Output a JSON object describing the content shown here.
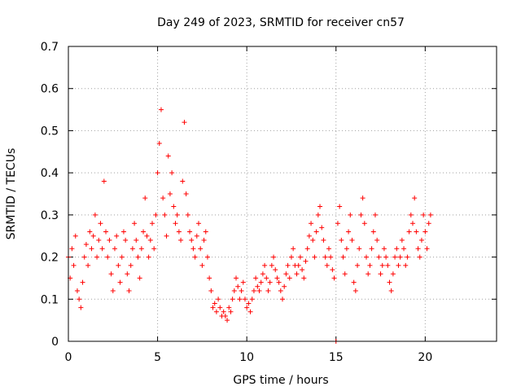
{
  "chart_data": {
    "type": "scatter",
    "title": "Day 249 of 2023, SRMTID for receiver cn57",
    "xlabel": "GPS time / hours",
    "ylabel": "SRMTID / TECUs",
    "xlim": [
      0,
      24
    ],
    "ylim": [
      0,
      0.7
    ],
    "xticks": [
      0,
      5,
      10,
      15,
      20
    ],
    "xtick_labels": [
      "0",
      "5",
      "10",
      "15",
      "20"
    ],
    "yticks": [
      0,
      0.1,
      0.2,
      0.3,
      0.4,
      0.5,
      0.6,
      0.7
    ],
    "ytick_labels": [
      "0",
      "0.1",
      "0.2",
      "0.3",
      "0.4",
      "0.5",
      "0.6",
      "0.7"
    ],
    "grid": true,
    "marker": "+",
    "series": [
      {
        "name": "SRMTID",
        "color": "#ff0000",
        "x": [
          0.0,
          0.1,
          0.2,
          0.3,
          0.4,
          0.5,
          0.6,
          0.7,
          0.8,
          0.9,
          1.0,
          1.1,
          1.2,
          1.3,
          1.4,
          1.5,
          1.6,
          1.7,
          1.8,
          1.9,
          2.0,
          2.1,
          2.2,
          2.3,
          2.4,
          2.5,
          2.6,
          2.7,
          2.8,
          2.9,
          3.0,
          3.1,
          3.2,
          3.3,
          3.4,
          3.5,
          3.6,
          3.7,
          3.8,
          3.9,
          4.0,
          4.1,
          4.2,
          4.3,
          4.4,
          4.5,
          4.6,
          4.7,
          4.8,
          4.9,
          5.0,
          5.1,
          5.2,
          5.3,
          5.4,
          5.5,
          5.6,
          5.7,
          5.8,
          5.9,
          6.0,
          6.1,
          6.2,
          6.3,
          6.4,
          6.5,
          6.6,
          6.7,
          6.8,
          6.9,
          7.0,
          7.1,
          7.2,
          7.3,
          7.4,
          7.5,
          7.6,
          7.7,
          7.8,
          7.9,
          8.0,
          8.1,
          8.2,
          8.3,
          8.4,
          8.5,
          8.6,
          8.7,
          8.8,
          8.9,
          9.0,
          9.1,
          9.2,
          9.3,
          9.4,
          9.5,
          9.6,
          9.7,
          9.8,
          9.9,
          10.0,
          10.1,
          10.2,
          10.3,
          10.4,
          10.5,
          10.6,
          10.7,
          10.8,
          10.9,
          11.0,
          11.1,
          11.2,
          11.3,
          11.4,
          11.5,
          11.6,
          11.7,
          11.8,
          11.9,
          12.0,
          12.1,
          12.2,
          12.3,
          12.4,
          12.5,
          12.6,
          12.7,
          12.8,
          12.9,
          13.0,
          13.1,
          13.2,
          13.3,
          13.4,
          13.5,
          13.6,
          13.7,
          13.8,
          13.9,
          14.0,
          14.1,
          14.2,
          14.3,
          14.4,
          14.5,
          14.6,
          14.7,
          14.8,
          14.9,
          15.0,
          15.1,
          15.2,
          15.3,
          15.4,
          15.5,
          15.6,
          15.7,
          15.8,
          15.9,
          16.0,
          16.1,
          16.2,
          16.3,
          16.4,
          16.5,
          16.6,
          16.7,
          16.8,
          16.9,
          17.0,
          17.1,
          17.2,
          17.3,
          17.4,
          17.5,
          17.6,
          17.7,
          17.8,
          17.9,
          18.0,
          18.1,
          18.2,
          18.3,
          18.4,
          18.5,
          18.6,
          18.7,
          18.8,
          18.9,
          19.0,
          19.1,
          19.2,
          19.3,
          19.4,
          19.5,
          19.6,
          19.7,
          19.8,
          19.9,
          20.0,
          20.1,
          20.2,
          20.3
        ],
        "y": [
          0.2,
          0.15,
          0.22,
          0.18,
          0.25,
          0.12,
          0.1,
          0.08,
          0.14,
          0.2,
          0.23,
          0.18,
          0.26,
          0.22,
          0.25,
          0.3,
          0.2,
          0.24,
          0.28,
          0.22,
          0.38,
          0.26,
          0.2,
          0.24,
          0.16,
          0.12,
          0.22,
          0.25,
          0.18,
          0.14,
          0.2,
          0.26,
          0.24,
          0.16,
          0.12,
          0.18,
          0.22,
          0.28,
          0.24,
          0.2,
          0.15,
          0.22,
          0.26,
          0.34,
          0.25,
          0.2,
          0.24,
          0.28,
          0.22,
          0.3,
          0.4,
          0.47,
          0.55,
          0.34,
          0.3,
          0.25,
          0.44,
          0.35,
          0.4,
          0.32,
          0.28,
          0.3,
          0.26,
          0.24,
          0.38,
          0.52,
          0.35,
          0.3,
          0.26,
          0.24,
          0.22,
          0.2,
          0.25,
          0.28,
          0.22,
          0.18,
          0.24,
          0.26,
          0.2,
          0.15,
          0.12,
          0.08,
          0.09,
          0.07,
          0.1,
          0.08,
          0.06,
          0.07,
          0.06,
          0.05,
          0.08,
          0.07,
          0.1,
          0.12,
          0.15,
          0.13,
          0.1,
          0.12,
          0.14,
          0.1,
          0.08,
          0.09,
          0.07,
          0.1,
          0.12,
          0.15,
          0.13,
          0.12,
          0.14,
          0.16,
          0.18,
          0.15,
          0.12,
          0.14,
          0.18,
          0.2,
          0.17,
          0.15,
          0.14,
          0.12,
          0.1,
          0.13,
          0.16,
          0.18,
          0.15,
          0.2,
          0.22,
          0.18,
          0.16,
          0.18,
          0.2,
          0.17,
          0.15,
          0.19,
          0.22,
          0.25,
          0.28,
          0.24,
          0.2,
          0.26,
          0.3,
          0.32,
          0.27,
          0.24,
          0.2,
          0.18,
          0.22,
          0.2,
          0.17,
          0.15,
          0.0,
          0.28,
          0.32,
          0.24,
          0.2,
          0.16,
          0.22,
          0.26,
          0.3,
          0.24,
          0.14,
          0.12,
          0.18,
          0.22,
          0.3,
          0.34,
          0.28,
          0.2,
          0.16,
          0.18,
          0.22,
          0.26,
          0.3,
          0.24,
          0.2,
          0.16,
          0.18,
          0.22,
          0.2,
          0.18,
          0.14,
          0.12,
          0.16,
          0.2,
          0.22,
          0.18,
          0.2,
          0.24,
          0.22,
          0.18,
          0.2,
          0.26,
          0.3,
          0.28,
          0.34,
          0.26,
          0.22,
          0.2,
          0.24,
          0.3,
          0.26,
          0.22,
          0.28,
          0.3
        ]
      }
    ]
  }
}
